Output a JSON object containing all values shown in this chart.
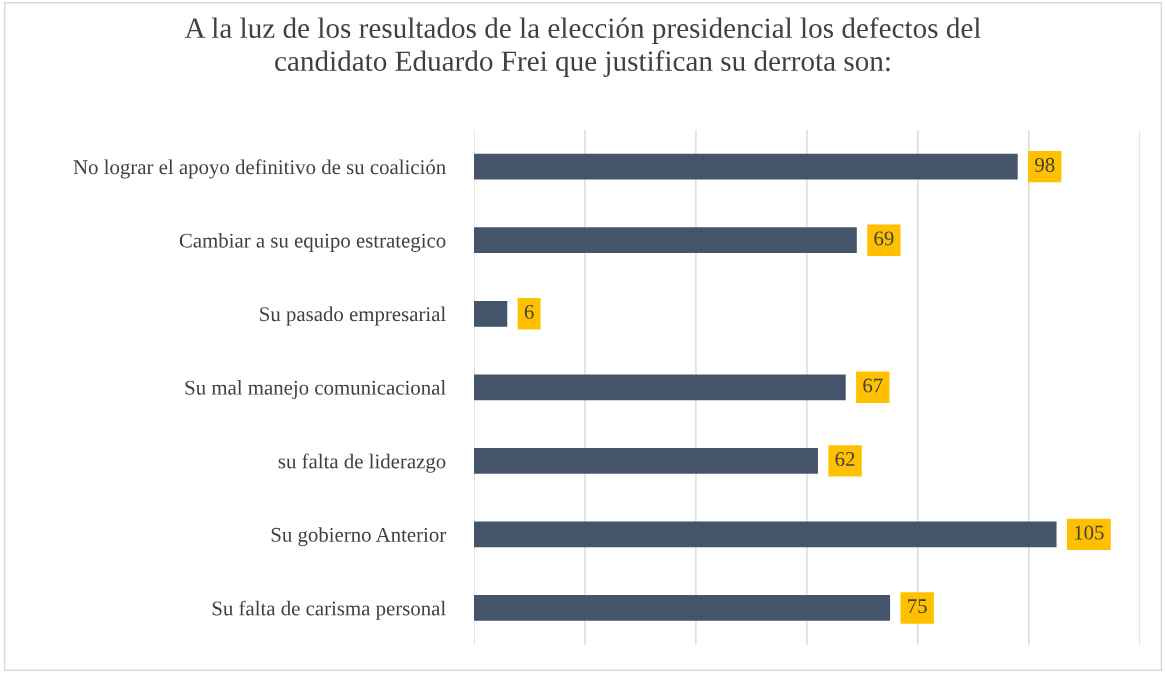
{
  "chart_data": {
    "type": "bar",
    "orientation": "horizontal",
    "title": "A la luz de los resultados de la elección presidencial los defectos del\ncandidato Eduardo Frei que justifican su derrota son:",
    "categories": [
      "No lograr el apoyo definitivo de su coalición",
      "Cambiar a su equipo estrategico",
      "Su pasado empresarial",
      "Su mal manejo comunicacional",
      "su falta de liderazgo",
      "Su gobierno Anterior",
      "Su falta de carisma personal"
    ],
    "values": [
      98,
      69,
      6,
      67,
      62,
      105,
      75
    ],
    "color": "#44546a",
    "data_labels": true,
    "xlim": [
      0,
      120
    ],
    "xticks": [
      {
        "value": 0,
        "label": null
      },
      {
        "value": 20,
        "label": null
      },
      {
        "value": 40,
        "label": null
      },
      {
        "value": 60,
        "label": null
      },
      {
        "value": 80,
        "label": null
      },
      {
        "value": 100,
        "label": null
      },
      {
        "value": 120,
        "label": null
      }
    ],
    "tick_labels": "y",
    "grid": "x",
    "legend": false
  }
}
